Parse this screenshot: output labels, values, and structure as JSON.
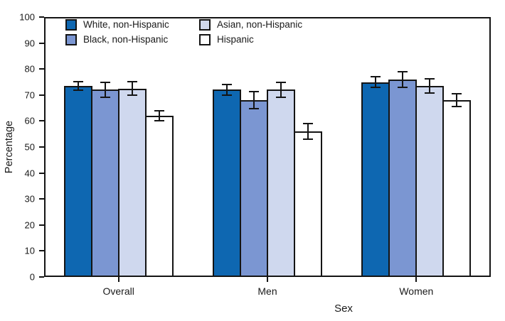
{
  "chart_data": {
    "type": "bar",
    "xlabel": "Sex",
    "ylabel": "Percentage",
    "categories": [
      "Overall",
      "Men",
      "Women"
    ],
    "series": [
      {
        "name": "White, non-Hispanic",
        "color": "#0e67b1",
        "values": [
          73.5,
          72.0,
          75.0
        ],
        "errors": [
          1.8,
          2.3,
          2.4
        ]
      },
      {
        "name": "Black, non-Hispanic",
        "color": "#7b96d2",
        "values": [
          72.0,
          68.0,
          76.0
        ],
        "errors": [
          3.1,
          3.5,
          3.3
        ]
      },
      {
        "name": "Asian, non-Hispanic",
        "color": "#cfd8ee",
        "values": [
          72.5,
          72.0,
          73.5
        ],
        "errors": [
          2.9,
          3.2,
          3.1
        ]
      },
      {
        "name": "Hispanic",
        "color": "#ffffff",
        "values": [
          62.0,
          56.0,
          68.0
        ],
        "errors": [
          2.1,
          3.2,
          2.7
        ]
      }
    ],
    "ylim": [
      0,
      100
    ],
    "yticks": [
      0,
      10,
      20,
      30,
      40,
      50,
      60,
      70,
      80,
      90,
      100
    ],
    "legend_position": "top-left",
    "grid": false,
    "error_bars": true,
    "axis_color": "#141414"
  }
}
